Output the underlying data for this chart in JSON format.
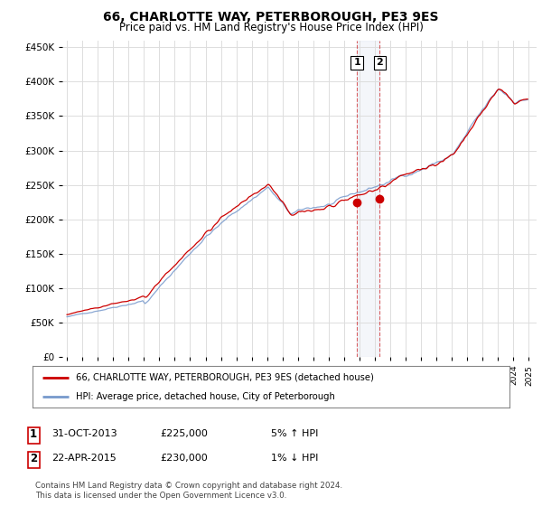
{
  "title": "66, CHARLOTTE WAY, PETERBOROUGH, PE3 9ES",
  "subtitle": "Price paid vs. HM Land Registry's House Price Index (HPI)",
  "legend_line1": "66, CHARLOTTE WAY, PETERBOROUGH, PE3 9ES (detached house)",
  "legend_line2": "HPI: Average price, detached house, City of Peterborough",
  "footer": "Contains HM Land Registry data © Crown copyright and database right 2024.\nThis data is licensed under the Open Government Licence v3.0.",
  "transaction1_date": "31-OCT-2013",
  "transaction1_price": "£225,000",
  "transaction1_hpi": "5% ↑ HPI",
  "transaction2_date": "22-APR-2015",
  "transaction2_price": "£230,000",
  "transaction2_hpi": "1% ↓ HPI",
  "red_color": "#cc0000",
  "blue_color": "#7799cc",
  "grid_color": "#dddddd",
  "bg_color": "#ffffff",
  "marker1_year": 2013.83,
  "marker2_year": 2015.31,
  "marker1_value": 225000,
  "marker2_value": 230000,
  "ylim_min": 0,
  "ylim_max": 460000,
  "xlim_min": 1994.7,
  "xlim_max": 2025.5
}
